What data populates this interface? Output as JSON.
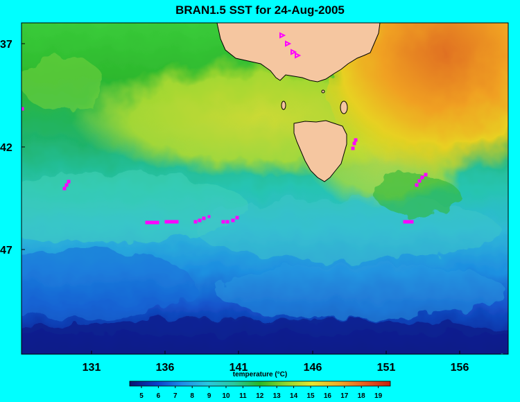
{
  "title": "BRAN1.5 SST for 24-Aug-2005",
  "axes": {
    "x_ticks": [
      "131",
      "136",
      "141",
      "146",
      "151",
      "156"
    ],
    "y_ticks": [
      "37",
      "42",
      "47"
    ]
  },
  "colorbar": {
    "title": "temperature (°C)",
    "ticks": [
      "5",
      "6",
      "7",
      "8",
      "9",
      "10",
      "11",
      "12",
      "13",
      "14",
      "15",
      "16",
      "17",
      "18",
      "19"
    ]
  },
  "colors": {
    "background": "#00ffff",
    "land": "#f5c6a0",
    "tracks": "#ff00ff"
  }
}
